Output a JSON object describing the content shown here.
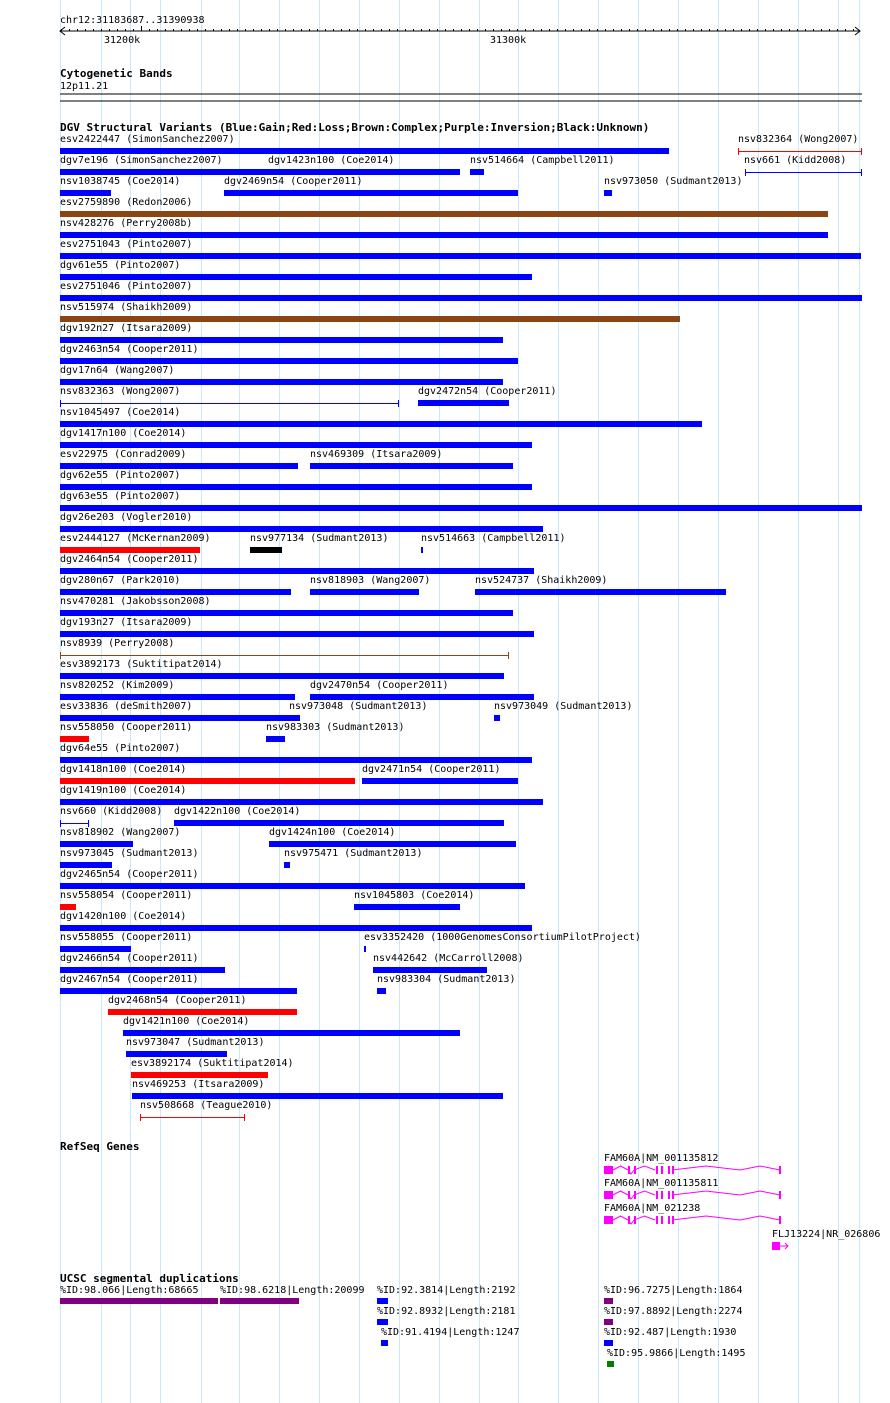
{
  "ruler": {
    "position": "chr12:31183687..31390938",
    "tick_left": "31200k",
    "tick_right": "31300k"
  },
  "tracks": {
    "cyto_title": "Cytogenetic Bands",
    "cyto_band": "12p11.21",
    "dgv_title": "DGV Structural Variants (Blue:Gain;Red:Loss;Brown:Complex;Purple:Inversion;Black:Unknown)",
    "refseq_title": "RefSeq Genes",
    "segdup_title": "UCSC segmental duplications"
  },
  "colors": {
    "gain": "#0000ff",
    "loss": "#ff0000",
    "complex": "#8b4513",
    "unknown": "#000000",
    "gene": "#ff00ff",
    "segdup_purple": "#800080",
    "segdup_blue": "#0000ff",
    "segdup_green": "#008000"
  },
  "variants": [
    {
      "label": "esv2422447 (SimonSanchez2007)"
    },
    {
      "label": "nsv832364 (Wong2007)"
    },
    {
      "label": "dgv7e196 (SimonSanchez2007)"
    },
    {
      "label": "dgv1423n100 (Coe2014)"
    },
    {
      "label": "nsv514664 (Campbell2011)"
    },
    {
      "label": "nsv661 (Kidd2008)"
    },
    {
      "label": "nsv1038745 (Coe2014)"
    },
    {
      "label": "dgv2469n54 (Cooper2011)"
    },
    {
      "label": "nsv973050 (Sudmant2013)"
    },
    {
      "label": "esv2759890 (Redon2006)"
    },
    {
      "label": "nsv428276 (Perry2008b)"
    },
    {
      "label": "esv2751043 (Pinto2007)"
    },
    {
      "label": "dgv61e55 (Pinto2007)"
    },
    {
      "label": "esv2751046 (Pinto2007)"
    },
    {
      "label": "nsv515974 (Shaikh2009)"
    },
    {
      "label": "dgv192n27 (Itsara2009)"
    },
    {
      "label": "dgv2463n54 (Cooper2011)"
    },
    {
      "label": "dgv17n64 (Wang2007)"
    },
    {
      "label": "nsv832363 (Wong2007)"
    },
    {
      "label": "dgv2472n54 (Cooper2011)"
    },
    {
      "label": "nsv1045497 (Coe2014)"
    },
    {
      "label": "dgv1417n100 (Coe2014)"
    },
    {
      "label": "esv22975 (Conrad2009)"
    },
    {
      "label": "nsv469309 (Itsara2009)"
    },
    {
      "label": "dgv62e55 (Pinto2007)"
    },
    {
      "label": "dgv63e55 (Pinto2007)"
    },
    {
      "label": "dgv26e203 (Vogler2010)"
    },
    {
      "label": "esv2444127 (McKernan2009)"
    },
    {
      "label": "nsv977134 (Sudmant2013)"
    },
    {
      "label": "nsv514663 (Campbell2011)"
    },
    {
      "label": "dgv2464n54 (Cooper2011)"
    },
    {
      "label": "dgv280n67 (Park2010)"
    },
    {
      "label": "nsv818903 (Wang2007)"
    },
    {
      "label": "nsv524737 (Shaikh2009)"
    },
    {
      "label": "nsv470281 (Jakobsson2008)"
    },
    {
      "label": "dgv193n27 (Itsara2009)"
    },
    {
      "label": "nsv8939 (Perry2008)"
    },
    {
      "label": "esv3892173 (Suktitipat2014)"
    },
    {
      "label": "nsv820252 (Kim2009)"
    },
    {
      "label": "dgv2470n54 (Cooper2011)"
    },
    {
      "label": "esv33836 (deSmith2007)"
    },
    {
      "label": "nsv973048 (Sudmant2013)"
    },
    {
      "label": "nsv973049 (Sudmant2013)"
    },
    {
      "label": "nsv558050 (Cooper2011)"
    },
    {
      "label": "nsv983303 (Sudmant2013)"
    },
    {
      "label": "dgv64e55 (Pinto2007)"
    },
    {
      "label": "dgv1418n100 (Coe2014)"
    },
    {
      "label": "dgv2471n54 (Cooper2011)"
    },
    {
      "label": "dgv1419n100 (Coe2014)"
    },
    {
      "label": "nsv660 (Kidd2008)"
    },
    {
      "label": "dgv1422n100 (Coe2014)"
    },
    {
      "label": "nsv818902 (Wang2007)"
    },
    {
      "label": "dgv1424n100 (Coe2014)"
    },
    {
      "label": "nsv973045 (Sudmant2013)"
    },
    {
      "label": "nsv975471 (Sudmant2013)"
    },
    {
      "label": "dgv2465n54 (Cooper2011)"
    },
    {
      "label": "nsv558054 (Cooper2011)"
    },
    {
      "label": "nsv1045803 (Coe2014)"
    },
    {
      "label": "dgv1420n100 (Coe2014)"
    },
    {
      "label": "nsv558055 (Cooper2011)"
    },
    {
      "label": "esv3352420 (1000GenomesConsortiumPilotProject)"
    },
    {
      "label": "dgv2466n54 (Cooper2011)"
    },
    {
      "label": "nsv442642 (McCarroll2008)"
    },
    {
      "label": "dgv2467n54 (Cooper2011)"
    },
    {
      "label": "nsv983304 (Sudmant2013)"
    },
    {
      "label": "dgv2468n54 (Cooper2011)"
    },
    {
      "label": "dgv1421n100 (Coe2014)"
    },
    {
      "label": "nsv973047 (Sudmant2013)"
    },
    {
      "label": "esv3892174 (Suktitipat2014)"
    },
    {
      "label": "nsv469253 (Itsara2009)"
    },
    {
      "label": "nsv508668 (Teague2010)"
    }
  ],
  "genes": [
    {
      "label": "FAM60A|NM_001135812"
    },
    {
      "label": "FAM60A|NM_001135811"
    },
    {
      "label": "FAM60A|NM_021238"
    },
    {
      "label": "FLJ13224|NR_026806"
    }
  ],
  "segdups": [
    {
      "label": "%ID:98.066|Length:68665"
    },
    {
      "label": "%ID:98.6218|Length:20099"
    },
    {
      "label": "%ID:92.3814|Length:2192"
    },
    {
      "label": "%ID:92.8932|Length:2181"
    },
    {
      "label": "%ID:91.4194|Length:1247"
    },
    {
      "label": "%ID:96.7275|Length:1864"
    },
    {
      "label": "%ID:97.8892|Length:2274"
    },
    {
      "label": "%ID:92.487|Length:1930"
    },
    {
      "label": "%ID:95.9866|Length:1495"
    }
  ]
}
